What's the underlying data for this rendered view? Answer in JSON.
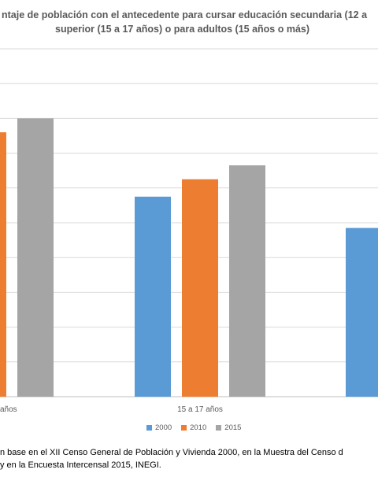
{
  "chart_data": {
    "type": "bar",
    "title_line1": "ntaje de población con el antecedente para cursar educación secundaria (12 a",
    "title_line2": "superior (15 a 17 años) o para adultos (15 años o más)",
    "categories": [
      "años",
      "15 a 17 años",
      ""
    ],
    "series": [
      {
        "name": "2000",
        "color": "#5b9bd5",
        "values": [
          null,
          57.5,
          48.5
        ]
      },
      {
        "name": "2010",
        "color": "#ed7d31",
        "values": [
          76,
          62.5,
          null
        ]
      },
      {
        "name": "2015",
        "color": "#a5a5a5",
        "values": [
          80,
          66.5,
          null
        ]
      }
    ],
    "ylim": [
      0,
      100
    ],
    "grid": true,
    "legend_position": "bottom"
  },
  "source_note": {
    "line1": "n base en el XII Censo General de Población y Vivienda 2000, en la Muestra del Censo d",
    "line2": "y en la Encuesta Intercensal 2015, INEGI."
  }
}
